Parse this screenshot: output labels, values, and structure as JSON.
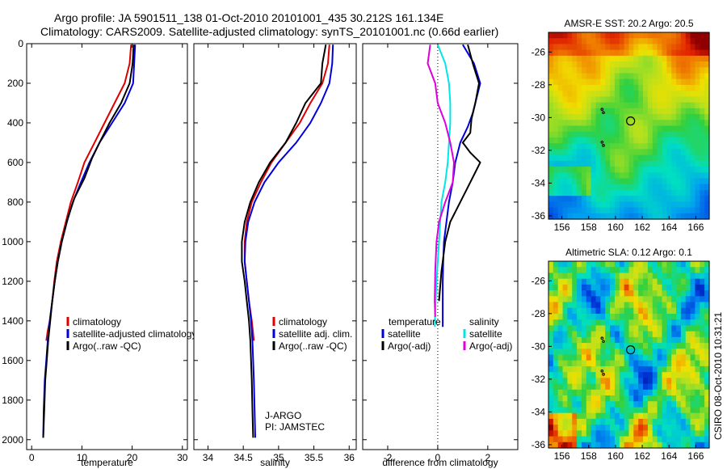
{
  "header": {
    "line1": "Argo profile: JA 5901511_138 01-Oct-2010 20101001_435 30.212S 161.134E",
    "line2": "Climatology: CARS2009. Satellite-adjusted climatology: synTS_20101001.nc (0.66d earlier)"
  },
  "credit": "CSIRO 08-Oct-2010 10:31:21",
  "colors": {
    "red": "#dd0000",
    "blue": "#0000dd",
    "black": "#000000",
    "cyan": "#00e5e5",
    "magenta": "#dd00dd"
  },
  "chart_data": [
    {
      "type": "line",
      "xlabel": "temperature",
      "xlim": [
        -1,
        31
      ],
      "ylim": [
        0,
        2050
      ],
      "xticks": [
        0,
        10,
        20,
        30
      ],
      "yticks": [
        0,
        200,
        400,
        600,
        800,
        1000,
        1200,
        1400,
        1600,
        1800,
        2000
      ],
      "legend": [
        "climatology",
        "satellite-adjusted climatology",
        "Argo(..raw -QC)"
      ],
      "series": [
        {
          "name": "climatology",
          "color": "red",
          "x": [
            19.8,
            19.5,
            18.5,
            16.5,
            14.5,
            12.5,
            10.5,
            9.2,
            7.8,
            6.8,
            5.8,
            5.0,
            4.5,
            4.1,
            3.6,
            3.2,
            2.9
          ],
          "y": [
            5,
            100,
            200,
            300,
            400,
            500,
            600,
            700,
            800,
            900,
            1000,
            1100,
            1200,
            1300,
            1400,
            1450,
            1500
          ]
        },
        {
          "name": "satellite-adjusted climatology",
          "color": "blue",
          "x": [
            20.6,
            20.4,
            20.2,
            18.5,
            16.0,
            13.5,
            11.5,
            9.8,
            8.2,
            7.0,
            6.0,
            5.2,
            4.6,
            4.1,
            3.6,
            3.2,
            2.9,
            2.6,
            2.4,
            2.3
          ],
          "y": [
            5,
            100,
            200,
            300,
            400,
            500,
            600,
            700,
            800,
            900,
            1000,
            1100,
            1200,
            1300,
            1400,
            1500,
            1600,
            1700,
            1850,
            1990
          ]
        },
        {
          "name": "Argo(..raw -QC)",
          "color": "black",
          "x": [
            20.3,
            20.1,
            19.5,
            17.8,
            15.5,
            13.5,
            12.0,
            10.5,
            8.5,
            7.2,
            6.0,
            5.2,
            4.6,
            4.1,
            3.7,
            3.3,
            3.0,
            2.7,
            2.5,
            2.3
          ],
          "y": [
            5,
            100,
            200,
            300,
            400,
            500,
            580,
            680,
            780,
            880,
            1000,
            1100,
            1200,
            1300,
            1400,
            1500,
            1600,
            1700,
            1850,
            1990
          ]
        }
      ]
    },
    {
      "type": "line",
      "xlabel": "salinity",
      "xlim": [
        33.8,
        36.1
      ],
      "ylim": [
        0,
        2050
      ],
      "xticks": [
        34,
        34.5,
        35,
        35.5,
        36
      ],
      "legend": [
        "climatology",
        "satellite adj. clim.",
        "Argo(..raw -QC)"
      ],
      "annotation": [
        "J-ARGO",
        "PI: JAMSTEC"
      ],
      "series": [
        {
          "name": "climatology",
          "color": "red",
          "x": [
            35.72,
            35.7,
            35.62,
            35.45,
            35.3,
            35.1,
            34.9,
            34.75,
            34.62,
            34.55,
            34.52,
            34.52,
            34.55,
            34.58,
            34.62,
            34.65
          ],
          "y": [
            5,
            100,
            200,
            300,
            400,
            500,
            600,
            700,
            800,
            900,
            1000,
            1100,
            1200,
            1300,
            1400,
            1500
          ]
        },
        {
          "name": "satellite adj. clim.",
          "color": "blue",
          "x": [
            35.77,
            35.76,
            35.72,
            35.6,
            35.45,
            35.25,
            35.0,
            34.8,
            34.66,
            34.57,
            34.53,
            34.52,
            34.55,
            34.58,
            34.61,
            34.63,
            34.64,
            34.65,
            34.66,
            34.67
          ],
          "y": [
            5,
            100,
            200,
            300,
            400,
            500,
            600,
            700,
            800,
            900,
            1000,
            1100,
            1200,
            1300,
            1400,
            1500,
            1600,
            1700,
            1850,
            1990
          ]
        },
        {
          "name": "Argo(..raw -QC)",
          "color": "black",
          "x": [
            35.67,
            35.62,
            35.6,
            35.38,
            35.25,
            35.1,
            34.88,
            34.72,
            34.6,
            34.52,
            34.48,
            34.48,
            34.52,
            34.55,
            34.58,
            34.6,
            34.61,
            34.62,
            34.63,
            34.64
          ],
          "y": [
            5,
            100,
            200,
            300,
            400,
            500,
            600,
            700,
            800,
            900,
            1000,
            1100,
            1200,
            1300,
            1400,
            1500,
            1600,
            1700,
            1850,
            1990
          ]
        }
      ]
    },
    {
      "type": "line",
      "xlabel": "difference from climatology",
      "xlim": [
        -3,
        3.2
      ],
      "ylim": [
        0,
        2050
      ],
      "xticks": [
        -2,
        0,
        2
      ],
      "legend_titles": [
        "temperature",
        "salinity"
      ],
      "legend_left": [
        "satellite",
        "Argo(-adj)"
      ],
      "legend_right": [
        "satellite",
        "Argo(-adj)"
      ],
      "series": [
        {
          "name": "temperature satellite",
          "color": "blue",
          "x": [
            1.0,
            1.45,
            1.7,
            1.5,
            1.4,
            1.2,
            0.9,
            0.7,
            0.6,
            0.45,
            0.35,
            0.25,
            0.22,
            0.2,
            0.2,
            0.2,
            0.2
          ],
          "y": [
            5,
            100,
            200,
            300,
            350,
            420,
            500,
            600,
            700,
            800,
            900,
            1000,
            1100,
            1200,
            1300,
            1400,
            1430
          ]
        },
        {
          "name": "temperature Argo(-adj)",
          "color": "black",
          "x": [
            1.2,
            1.4,
            1.65,
            1.5,
            1.35,
            1.3,
            1.0,
            1.3,
            1.7,
            1.3,
            0.9,
            0.5,
            0.3,
            0.15,
            0.05
          ],
          "y": [
            5,
            100,
            200,
            300,
            380,
            450,
            500,
            550,
            600,
            700,
            800,
            900,
            1000,
            1150,
            1300
          ]
        },
        {
          "name": "salinity satellite",
          "color": "cyan",
          "x": [
            0.0,
            0.3,
            0.45,
            0.5,
            0.5,
            0.45,
            0.4,
            0.3,
            0.15,
            0.05,
            -0.05,
            -0.1,
            -0.12
          ],
          "y": [
            5,
            100,
            200,
            300,
            400,
            500,
            600,
            700,
            800,
            1000,
            1200,
            1350,
            1430
          ]
        },
        {
          "name": "salinity Argo(-adj)",
          "color": "magenta",
          "x": [
            -0.3,
            -0.4,
            -0.1,
            0.0,
            0.3,
            0.5,
            0.65,
            0.6,
            0.3,
            0.05,
            -0.05,
            -0.1,
            -0.12,
            -0.1
          ],
          "y": [
            5,
            100,
            200,
            300,
            400,
            500,
            600,
            700,
            800,
            900,
            1000,
            1150,
            1300,
            1380
          ]
        }
      ]
    },
    {
      "type": "heatmap",
      "title": "AMSR-E SST: 20.2 Argo: 20.5",
      "xlim": [
        155,
        167
      ],
      "ylim": [
        -36.2,
        -24.8
      ],
      "xticks": [
        156,
        158,
        160,
        162,
        164,
        166
      ],
      "yticks": [
        -26,
        -28,
        -30,
        -32,
        -34,
        -36
      ],
      "marker": {
        "lon": 161.13,
        "lat": -30.21
      },
      "track": [
        [
          159.0,
          -29.5
        ],
        [
          159.1,
          -29.7
        ],
        [
          159.0,
          -31.5
        ],
        [
          159.1,
          -31.7
        ]
      ]
    },
    {
      "type": "heatmap",
      "title": "Altimetric SLA: 0.12 Argo: 0.1",
      "xlim": [
        155,
        167
      ],
      "ylim": [
        -36.2,
        -24.8
      ],
      "xticks": [
        156,
        158,
        160,
        162,
        164,
        166
      ],
      "yticks": [
        -26,
        -28,
        -30,
        -32,
        -34,
        -36
      ],
      "marker": {
        "lon": 161.13,
        "lat": -30.21
      },
      "track": [
        [
          159.0,
          -29.5
        ],
        [
          159.1,
          -29.7
        ],
        [
          159.0,
          -31.5
        ],
        [
          159.1,
          -31.7
        ]
      ]
    }
  ]
}
